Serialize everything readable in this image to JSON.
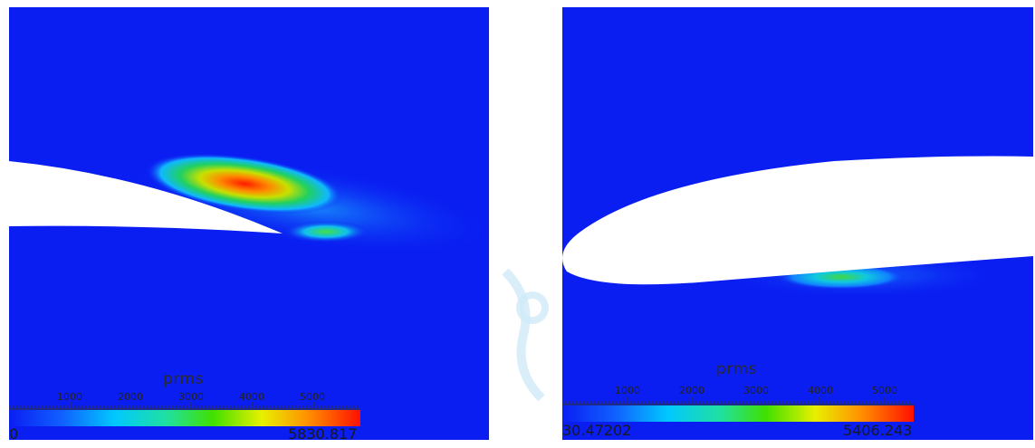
{
  "panels": [
    {
      "colorbar": {
        "title": "prms",
        "ticks": [
          "1000",
          "2000",
          "3000",
          "4000",
          "5000"
        ],
        "min_label": "0",
        "max_label": "5830.817"
      }
    },
    {
      "colorbar": {
        "title": "prms",
        "ticks": [
          "1000",
          "2000",
          "3000",
          "4000",
          "5000"
        ],
        "min_label": "30.47202",
        "max_label": "5406.243"
      }
    }
  ],
  "colors": {
    "field_background": "#0a1ef2",
    "airfoil": "#ffffff",
    "watermark": "#bfe3f7"
  }
}
